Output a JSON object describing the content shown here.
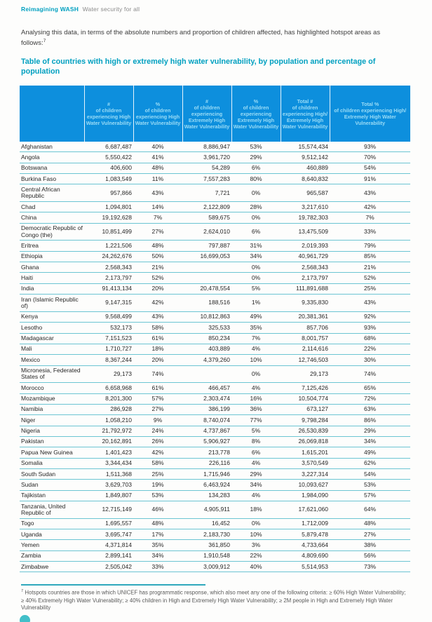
{
  "page": {
    "brand": "Reimagining WASH",
    "brand_subtitle": "Water security for all",
    "intro_text": "Analysing this data, in terms of the absolute numbers and proportion of children affected, has highlighted hotspot areas as follows:",
    "intro_footnote_marker": "7",
    "table_title": "Table of countries with high or extremely high water vulnerability, by population and percentage of population"
  },
  "table": {
    "columns": [
      {
        "top": "",
        "rest": ""
      },
      {
        "top": "#",
        "rest": "of children experiencing High Water Vulnerability"
      },
      {
        "top": "%",
        "rest": "of children experiencing High Water Vulnerability"
      },
      {
        "top": "#",
        "rest": "of children experiencing Extremely High Water Vulnerability"
      },
      {
        "top": "%",
        "rest": "of children experiencing Extremely High Water Vulnerability"
      },
      {
        "top": "Total #",
        "rest": "of children experiencing High/ Extremely High Water Vulnerability"
      },
      {
        "top": "Total %",
        "rest": "of children experiencing High/ Extremely High Water Vulnerability"
      }
    ],
    "rows": [
      [
        "Afghanistan",
        "6,687,487",
        "40%",
        "8,886,947",
        "53%",
        "15,574,434",
        "93%"
      ],
      [
        "Angola",
        "5,550,422",
        "41%",
        "3,961,720",
        "29%",
        "9,512,142",
        "70%"
      ],
      [
        "Botswana",
        "406,600",
        "48%",
        "54,289",
        "6%",
        "460,889",
        "54%"
      ],
      [
        "Burkina Faso",
        "1,083,549",
        "11%",
        "7,557,283",
        "80%",
        "8,640,832",
        "91%"
      ],
      [
        "Central African Republic",
        "957,866",
        "43%",
        "7,721",
        "0%",
        "965,587",
        "43%"
      ],
      [
        "Chad",
        "1,094,801",
        "14%",
        "2,122,809",
        "28%",
        "3,217,610",
        "42%"
      ],
      [
        "China",
        "19,192,628",
        "7%",
        "589,675",
        "0%",
        "19,782,303",
        "7%"
      ],
      [
        "Democratic Republic of Congo (the)",
        "10,851,499",
        "27%",
        "2,624,010",
        "6%",
        "13,475,509",
        "33%"
      ],
      [
        "Eritrea",
        "1,221,506",
        "48%",
        "797,887",
        "31%",
        "2,019,393",
        "79%"
      ],
      [
        "Ethiopia",
        "24,262,676",
        "50%",
        "16,699,053",
        "34%",
        "40,961,729",
        "85%"
      ],
      [
        "Ghana",
        "2,568,343",
        "21%",
        "",
        "0%",
        "2,568,343",
        "21%"
      ],
      [
        "Haiti",
        "2,173,797",
        "52%",
        "",
        "0%",
        "2,173,797",
        "52%"
      ],
      [
        "India",
        "91,413,134",
        "20%",
        "20,478,554",
        "5%",
        "111,891,688",
        "25%"
      ],
      [
        "Iran (Islamic Republic of)",
        "9,147,315",
        "42%",
        "188,516",
        "1%",
        "9,335,830",
        "43%"
      ],
      [
        "Kenya",
        "9,568,499",
        "43%",
        "10,812,863",
        "49%",
        "20,381,361",
        "92%"
      ],
      [
        "Lesotho",
        "532,173",
        "58%",
        "325,533",
        "35%",
        "857,706",
        "93%"
      ],
      [
        "Madagascar",
        "7,151,523",
        "61%",
        "850,234",
        "7%",
        "8,001,757",
        "68%"
      ],
      [
        "Mali",
        "1,710,727",
        "18%",
        "403,889",
        "4%",
        "2,114,616",
        "22%"
      ],
      [
        "Mexico",
        "8,367,244",
        "20%",
        "4,379,260",
        "10%",
        "12,746,503",
        "30%"
      ],
      [
        "Micronesia, Federated States of",
        "29,173",
        "74%",
        "",
        "0%",
        "29,173",
        "74%"
      ],
      [
        "Morocco",
        "6,658,968",
        "61%",
        "466,457",
        "4%",
        "7,125,426",
        "65%"
      ],
      [
        "Mozambique",
        "8,201,300",
        "57%",
        "2,303,474",
        "16%",
        "10,504,774",
        "72%"
      ],
      [
        "Namibia",
        "286,928",
        "27%",
        "386,199",
        "36%",
        "673,127",
        "63%"
      ],
      [
        "Niger",
        "1,058,210",
        "9%",
        "8,740,074",
        "77%",
        "9,798,284",
        "86%"
      ],
      [
        "Nigeria",
        "21,792,972",
        "24%",
        "4,737,867",
        "5%",
        "26,530,839",
        "29%"
      ],
      [
        "Pakistan",
        "20,162,891",
        "26%",
        "5,906,927",
        "8%",
        "26,069,818",
        "34%"
      ],
      [
        "Papua New Guinea",
        "1,401,423",
        "42%",
        "213,778",
        "6%",
        "1,615,201",
        "49%"
      ],
      [
        "Somalia",
        "3,344,434",
        "58%",
        "226,116",
        "4%",
        "3,570,549",
        "62%"
      ],
      [
        "South Sudan",
        "1,511,368",
        "25%",
        "1,715,946",
        "29%",
        "3,227,314",
        "54%"
      ],
      [
        "Sudan",
        "3,629,703",
        "19%",
        "6,463,924",
        "34%",
        "10,093,627",
        "53%"
      ],
      [
        "Tajikistan",
        "1,849,807",
        "53%",
        "134,283",
        "4%",
        "1,984,090",
        "57%"
      ],
      [
        "Tanzania, United Republic of",
        "12,715,149",
        "46%",
        "4,905,911",
        "18%",
        "17,621,060",
        "64%"
      ],
      [
        "Togo",
        "1,695,557",
        "48%",
        "16,452",
        "0%",
        "1,712,009",
        "48%"
      ],
      [
        "Uganda",
        "3,695,747",
        "17%",
        "2,183,730",
        "10%",
        "5,879,478",
        "27%"
      ],
      [
        "Yemen",
        "4,371,814",
        "35%",
        "361,850",
        "3%",
        "4,733,664",
        "38%"
      ],
      [
        "Zambia",
        "2,899,141",
        "34%",
        "1,910,548",
        "22%",
        "4,809,690",
        "56%"
      ],
      [
        "Zimbabwe",
        "2,505,042",
        "33%",
        "3,009,912",
        "40%",
        "5,514,953",
        "73%"
      ]
    ]
  },
  "footnote": {
    "marker": "7",
    "text": "Hotspots countries are those in which UNICEF has programmatic response, which also meet any one of the following criteria: ≥ 60% High Water Vulnerability; ≥ 40% Extremely High Water Vulnerability; ≥ 40% children in High and Extremely High Water Vulnerability; ≥ 2M people in High and Extremely High Water Vulnerability"
  },
  "colors": {
    "header_blue": "#0d8fdd",
    "header_text": "#9adcf6",
    "teal_accent": "#00a0c0",
    "row_divider": "#6cc5d3",
    "footnote_rule": "#2fa8bc",
    "page_dot": "#42bfc9"
  }
}
